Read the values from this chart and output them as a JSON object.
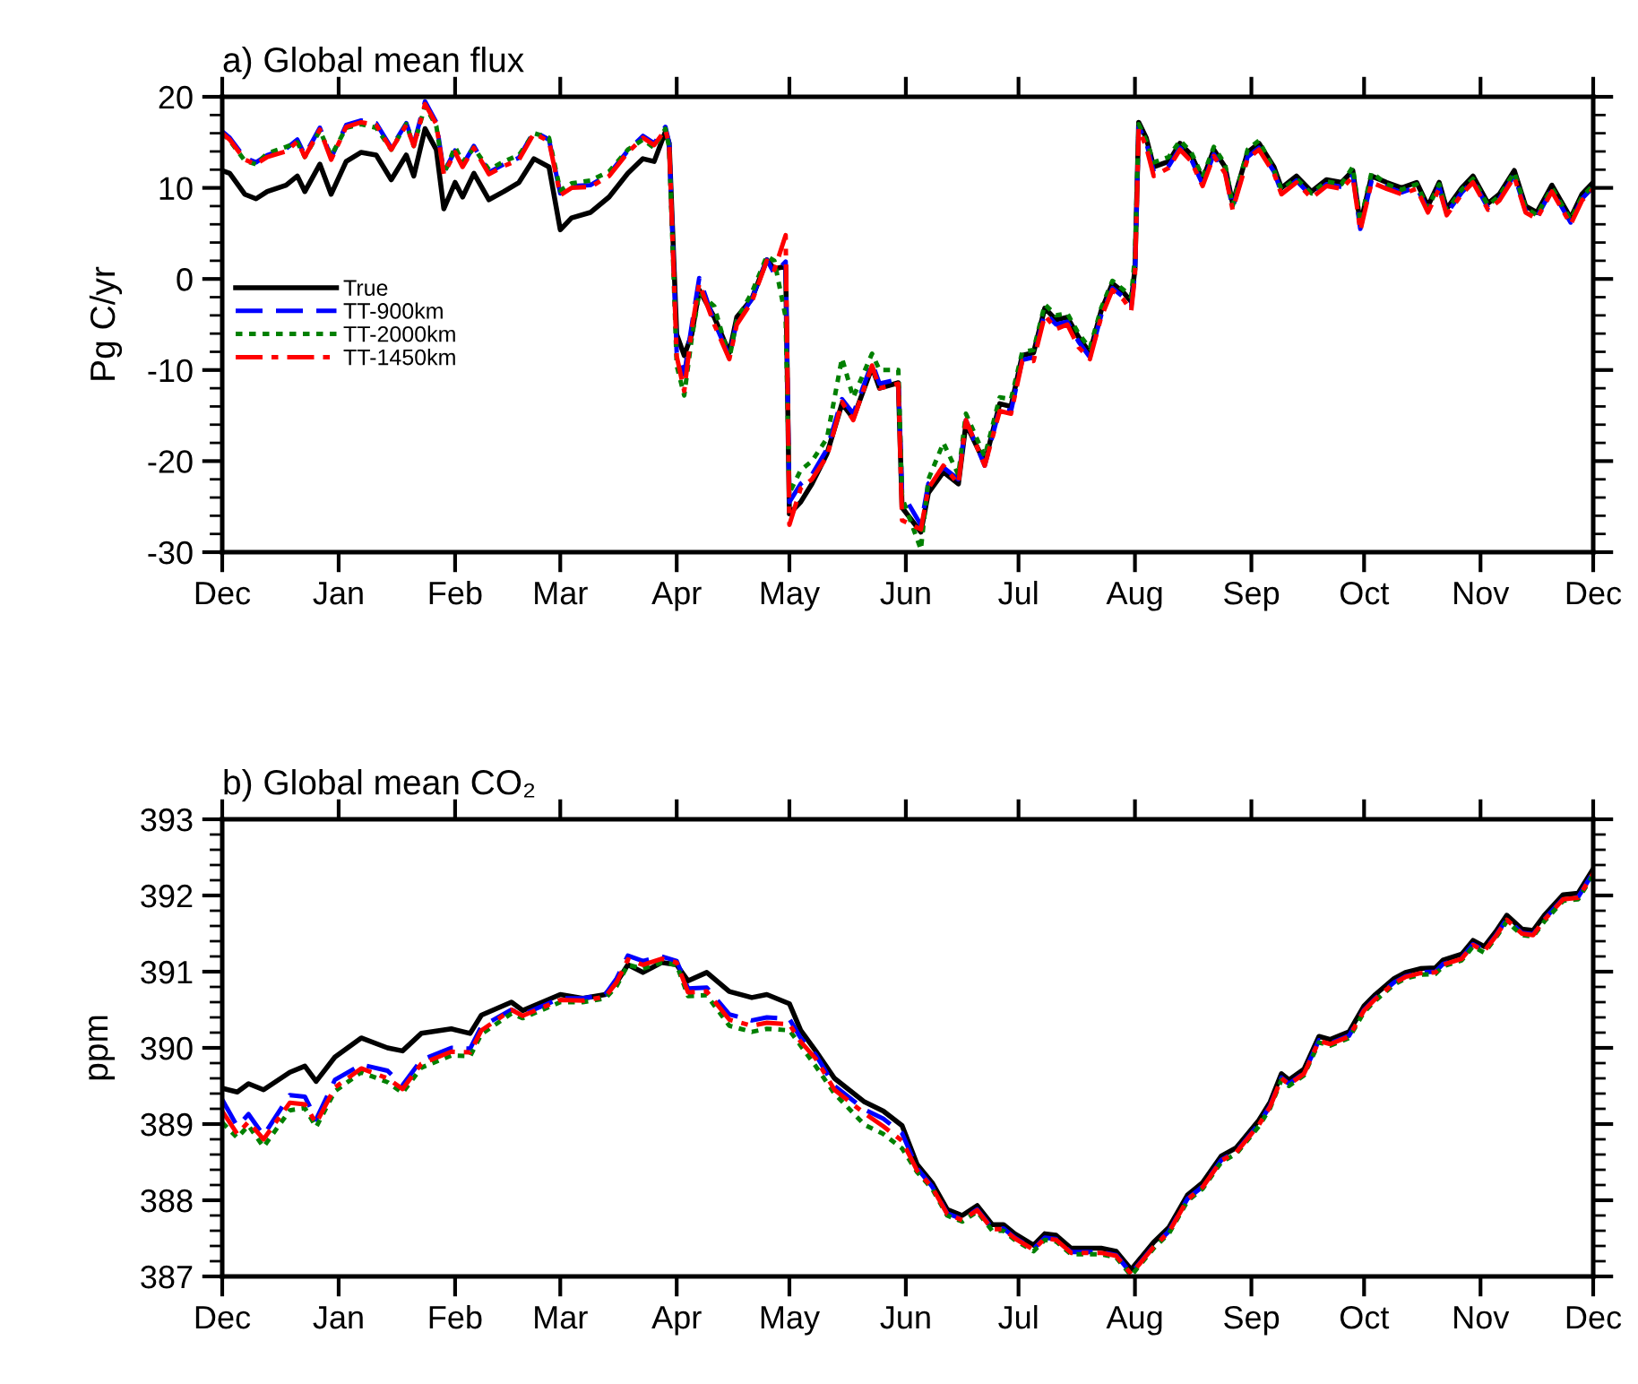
{
  "chart_data": [
    {
      "type": "line",
      "title": "a) Global mean flux",
      "ylabel": "Pg C/yr",
      "xlim": [
        "2000-12-01",
        "2001-12-01"
      ],
      "ylim": [
        -30,
        20
      ],
      "yticks": [
        -30,
        -20,
        -10,
        0,
        10,
        20
      ],
      "xticks": [
        {
          "value": "2000-12-01",
          "label": "Dec"
        },
        {
          "value": "2001-01-01",
          "label": "Jan"
        },
        {
          "value": "2001-02-01",
          "label": "Feb"
        },
        {
          "value": "2001-03-01",
          "label": "Mar"
        },
        {
          "value": "2001-04-01",
          "label": "Apr"
        },
        {
          "value": "2001-05-01",
          "label": "May"
        },
        {
          "value": "2001-06-01",
          "label": "Jun"
        },
        {
          "value": "2001-07-01",
          "label": "Jul"
        },
        {
          "value": "2001-08-01",
          "label": "Aug"
        },
        {
          "value": "2001-09-01",
          "label": "Sep"
        },
        {
          "value": "2001-10-01",
          "label": "Oct"
        },
        {
          "value": "2001-11-01",
          "label": "Nov"
        },
        {
          "value": "2001-12-01",
          "label": "Dec"
        }
      ],
      "legend": "left",
      "x": [
        "2000-12-01",
        "2000-12-03",
        "2000-12-07",
        "2000-12-10",
        "2000-12-13",
        "2000-12-18",
        "2000-12-21",
        "2000-12-23",
        "2000-12-27",
        "2000-12-30",
        "2001-01-03",
        "2001-01-07",
        "2001-01-11",
        "2001-01-15",
        "2001-01-19",
        "2001-01-21",
        "2001-01-24",
        "2001-01-27",
        "2001-01-29",
        "2001-02-01",
        "2001-02-03",
        "2001-02-06",
        "2001-02-10",
        "2001-02-14",
        "2001-02-18",
        "2001-02-22",
        "2001-02-26",
        "2001-03-01",
        "2001-03-04",
        "2001-03-09",
        "2001-03-14",
        "2001-03-19",
        "2001-03-23",
        "2001-03-26",
        "2001-03-29",
        "2001-03-30",
        "2001-04-01",
        "2001-04-03",
        "2001-04-05",
        "2001-04-07",
        "2001-04-11",
        "2001-04-15",
        "2001-04-17",
        "2001-04-21",
        "2001-04-25",
        "2001-04-27",
        "2001-04-30",
        "2001-05-01",
        "2001-05-04",
        "2001-05-07",
        "2001-05-11",
        "2001-05-15",
        "2001-05-18",
        "2001-05-23",
        "2001-05-25",
        "2001-05-30",
        "2001-05-31",
        "2001-06-05",
        "2001-06-07",
        "2001-06-11",
        "2001-06-15",
        "2001-06-17",
        "2001-06-22",
        "2001-06-26",
        "2001-06-29",
        "2001-07-02",
        "2001-07-05",
        "2001-07-08",
        "2001-07-11",
        "2001-07-14",
        "2001-07-17",
        "2001-07-20",
        "2001-07-23",
        "2001-07-26",
        "2001-07-29",
        "2001-07-31",
        "2001-08-01",
        "2001-08-02",
        "2001-08-04",
        "2001-08-06",
        "2001-08-10",
        "2001-08-13",
        "2001-08-16",
        "2001-08-19",
        "2001-08-22",
        "2001-08-25",
        "2001-08-27",
        "2001-08-31",
        "2001-09-03",
        "2001-09-07",
        "2001-09-09",
        "2001-09-13",
        "2001-09-17",
        "2001-09-21",
        "2001-09-25",
        "2001-09-28",
        "2001-09-30",
        "2001-10-03",
        "2001-10-07",
        "2001-10-11",
        "2001-10-15",
        "2001-10-18",
        "2001-10-21",
        "2001-10-23",
        "2001-10-27",
        "2001-10-30",
        "2001-11-03",
        "2001-11-06",
        "2001-11-10",
        "2001-11-13",
        "2001-11-16",
        "2001-11-20",
        "2001-11-25",
        "2001-11-28",
        "2001-12-01"
      ],
      "series": [
        {
          "name": "True",
          "color": "#000000",
          "line_style": "solid",
          "values": [
            11.9,
            11.6,
            9.3,
            8.8,
            9.6,
            10.3,
            11.3,
            9.6,
            12.6,
            9.3,
            12.9,
            13.9,
            13.6,
            10.9,
            13.6,
            11.3,
            16.5,
            14.2,
            7.7,
            10.6,
            9.0,
            11.6,
            8.7,
            9.6,
            10.6,
            13.2,
            12.3,
            5.4,
            6.7,
            7.3,
            9.0,
            11.6,
            13.2,
            12.9,
            16.2,
            14.9,
            -6.1,
            -8.4,
            -6.1,
            -1.2,
            -4.2,
            -8.1,
            -4.2,
            -2.2,
            2.1,
            1.1,
            1.4,
            -25.8,
            -24.5,
            -22.5,
            -19.2,
            -13.7,
            -15.3,
            -9.7,
            -12.0,
            -11.4,
            -25.1,
            -27.8,
            -23.5,
            -21.2,
            -22.5,
            -15.9,
            -20.2,
            -13.7,
            -14.0,
            -8.4,
            -8.1,
            -3.2,
            -4.5,
            -4.2,
            -6.4,
            -8.1,
            -3.5,
            -0.5,
            -1.5,
            -2.5,
            1.1,
            17.2,
            15.5,
            12.3,
            12.9,
            14.9,
            13.6,
            10.9,
            14.2,
            12.3,
            8.3,
            13.9,
            14.9,
            12.3,
            10.0,
            11.3,
            9.6,
            10.9,
            10.6,
            11.9,
            6.0,
            11.3,
            10.6,
            10.0,
            10.6,
            8.0,
            10.6,
            7.7,
            10.0,
            11.3,
            8.3,
            9.3,
            11.9,
            8.0,
            7.3,
            10.3,
            6.7,
            9.3,
            10.6
          ]
        },
        {
          "name": "TT-900km",
          "color": "#0000ff",
          "line_style": "dashed",
          "values": [
            16.2,
            15.5,
            13.3,
            12.8,
            13.6,
            14.3,
            15.3,
            13.6,
            16.6,
            13.3,
            16.9,
            17.4,
            17.1,
            14.4,
            17.1,
            14.8,
            19.5,
            17.2,
            11.7,
            14.1,
            12.5,
            14.6,
            11.7,
            12.6,
            13.3,
            16.2,
            15.3,
            9.4,
            10.2,
            10.3,
            11.5,
            14.1,
            15.7,
            14.9,
            16.7,
            14.9,
            -8.1,
            -10.5,
            -5.1,
            0.1,
            -4.7,
            -8.5,
            -4.7,
            -2.2,
            2.1,
            0.6,
            1.9,
            -24.5,
            -22.5,
            -21.5,
            -18.7,
            -13.2,
            -14.8,
            -9.2,
            -11.5,
            -11.0,
            -23.5,
            -27.0,
            -22.5,
            -20.7,
            -22.0,
            -15.5,
            -20.5,
            -14.2,
            -14.5,
            -8.9,
            -8.6,
            -3.7,
            -5.0,
            -4.7,
            -6.9,
            -8.6,
            -4.0,
            -1.0,
            -2.0,
            -3.0,
            0.6,
            16.7,
            15.0,
            11.8,
            12.4,
            14.4,
            13.1,
            10.4,
            13.7,
            11.8,
            7.8,
            13.4,
            14.4,
            11.8,
            9.5,
            10.8,
            9.1,
            10.4,
            10.1,
            11.4,
            5.5,
            10.8,
            10.1,
            9.5,
            10.1,
            7.5,
            10.1,
            7.2,
            9.5,
            10.8,
            7.8,
            8.8,
            11.4,
            7.5,
            6.8,
            9.8,
            6.2,
            8.8,
            10.1
          ]
        },
        {
          "name": "TT-2000km",
          "color": "#008000",
          "line_style": "dotted",
          "values": [
            16.0,
            15.2,
            13.0,
            12.6,
            13.8,
            14.5,
            15.0,
            13.4,
            16.3,
            13.5,
            16.6,
            17.0,
            16.6,
            14.2,
            17.0,
            14.6,
            19.0,
            16.8,
            11.5,
            14.5,
            12.8,
            14.4,
            12.0,
            12.9,
            13.6,
            16.0,
            15.5,
            9.7,
            10.5,
            10.8,
            11.8,
            14.2,
            15.3,
            14.4,
            16.5,
            14.4,
            -9.5,
            -12.8,
            -6.5,
            -1.5,
            -3.0,
            -8.8,
            -4.5,
            -1.5,
            2.5,
            2.0,
            -4.2,
            -23.5,
            -21.0,
            -20.0,
            -17.5,
            -8.7,
            -13.0,
            -8.2,
            -10.0,
            -10.0,
            -24.0,
            -29.7,
            -22.0,
            -18.0,
            -21.5,
            -14.8,
            -19.5,
            -13.0,
            -13.2,
            -8.0,
            -7.8,
            -2.8,
            -4.0,
            -3.8,
            -6.0,
            -7.6,
            -3.2,
            -0.2,
            -1.2,
            -2.0,
            2.5,
            17.0,
            15.2,
            12.8,
            13.4,
            15.2,
            13.9,
            11.2,
            14.5,
            12.6,
            8.0,
            14.2,
            15.2,
            12.0,
            9.8,
            11.0,
            9.4,
            10.7,
            10.4,
            12.3,
            6.2,
            11.7,
            10.4,
            9.8,
            10.4,
            7.8,
            10.4,
            7.5,
            9.8,
            11.0,
            8.1,
            9.1,
            11.7,
            7.8,
            7.0,
            10.0,
            6.5,
            9.0,
            10.3
          ]
        },
        {
          "name": "TT-1450km",
          "color": "#ff0000",
          "line_style": "dashdot",
          "values": [
            16.0,
            15.3,
            13.1,
            12.6,
            13.4,
            14.0,
            15.1,
            13.4,
            16.4,
            13.1,
            16.7,
            17.2,
            16.9,
            14.2,
            16.9,
            14.6,
            19.2,
            17.0,
            11.5,
            13.9,
            12.3,
            14.4,
            11.5,
            12.4,
            13.1,
            16.0,
            15.1,
            9.2,
            10.0,
            10.1,
            11.3,
            13.9,
            15.5,
            14.7,
            16.4,
            14.7,
            -8.5,
            -12.3,
            -5.5,
            -0.5,
            -5.0,
            -8.8,
            -5.0,
            -2.5,
            2.0,
            1.0,
            4.8,
            -27.0,
            -23.0,
            -22.0,
            -19.5,
            -13.5,
            -15.5,
            -9.5,
            -12.0,
            -11.5,
            -26.5,
            -27.5,
            -23.0,
            -20.5,
            -22.5,
            -15.5,
            -20.5,
            -14.5,
            -14.8,
            -9.0,
            -9.0,
            -4.0,
            -5.5,
            -5.0,
            -7.5,
            -8.8,
            -4.2,
            -1.2,
            -2.3,
            -3.5,
            0.3,
            16.5,
            14.5,
            11.3,
            12.2,
            14.2,
            12.9,
            10.2,
            13.5,
            11.6,
            7.6,
            13.2,
            14.2,
            11.6,
            9.3,
            10.6,
            8.9,
            10.2,
            9.9,
            11.2,
            5.3,
            10.6,
            9.9,
            9.3,
            9.9,
            7.3,
            9.9,
            7.0,
            9.3,
            10.6,
            7.6,
            8.6,
            11.2,
            7.3,
            6.6,
            9.6,
            6.0,
            8.6,
            9.9
          ]
        }
      ]
    },
    {
      "type": "line",
      "title": "b) Global mean CO₂",
      "ylabel": "ppm",
      "xlim": [
        "2000-12-01",
        "2001-12-01"
      ],
      "ylim": [
        387,
        393
      ],
      "yticks": [
        387,
        388,
        389,
        390,
        391,
        392,
        393
      ],
      "xticks": [
        {
          "value": "2000-12-01",
          "label": "Dec"
        },
        {
          "value": "2001-01-01",
          "label": "Jan"
        },
        {
          "value": "2001-02-01",
          "label": "Feb"
        },
        {
          "value": "2001-03-01",
          "label": "Mar"
        },
        {
          "value": "2001-04-01",
          "label": "Apr"
        },
        {
          "value": "2001-05-01",
          "label": "May"
        },
        {
          "value": "2001-06-01",
          "label": "Jun"
        },
        {
          "value": "2001-07-01",
          "label": "Jul"
        },
        {
          "value": "2001-08-01",
          "label": "Aug"
        },
        {
          "value": "2001-09-01",
          "label": "Sep"
        },
        {
          "value": "2001-10-01",
          "label": "Oct"
        },
        {
          "value": "2001-11-01",
          "label": "Nov"
        },
        {
          "value": "2001-12-01",
          "label": "Dec"
        }
      ],
      "x": [
        "2000-12-01",
        "2000-12-05",
        "2000-12-08",
        "2000-12-12",
        "2000-12-19",
        "2000-12-23",
        "2000-12-26",
        "2000-12-31",
        "2001-01-07",
        "2001-01-14",
        "2001-01-18",
        "2001-01-23",
        "2001-01-31",
        "2001-02-05",
        "2001-02-08",
        "2001-02-16",
        "2001-02-19",
        "2001-03-01",
        "2001-03-07",
        "2001-03-13",
        "2001-03-16",
        "2001-03-19",
        "2001-03-23",
        "2001-03-28",
        "2001-04-01",
        "2001-04-04",
        "2001-04-09",
        "2001-04-15",
        "2001-04-21",
        "2001-04-25",
        "2001-05-01",
        "2001-05-04",
        "2001-05-08",
        "2001-05-13",
        "2001-05-21",
        "2001-05-26",
        "2001-05-31",
        "2001-06-04",
        "2001-06-08",
        "2001-06-12",
        "2001-06-16",
        "2001-06-20",
        "2001-06-24",
        "2001-06-27",
        "2001-06-30",
        "2001-07-05",
        "2001-07-08",
        "2001-07-11",
        "2001-07-15",
        "2001-07-23",
        "2001-07-27",
        "2001-07-31",
        "2001-08-06",
        "2001-08-10",
        "2001-08-15",
        "2001-08-19",
        "2001-08-24",
        "2001-08-28",
        "2001-09-03",
        "2001-09-06",
        "2001-09-09",
        "2001-09-11",
        "2001-09-15",
        "2001-09-19",
        "2001-09-22",
        "2001-09-27",
        "2001-10-01",
        "2001-10-04",
        "2001-10-09",
        "2001-10-12",
        "2001-10-16",
        "2001-10-20",
        "2001-10-22",
        "2001-10-27",
        "2001-10-30",
        "2001-11-02",
        "2001-11-05",
        "2001-11-08",
        "2001-11-12",
        "2001-11-15",
        "2001-11-18",
        "2001-11-23",
        "2001-11-27",
        "2001-12-01"
      ],
      "series": [
        {
          "color": "#000000",
          "line_style": "solid",
          "values": [
            389.47,
            389.42,
            389.53,
            389.45,
            389.68,
            389.76,
            389.56,
            389.88,
            390.13,
            390.0,
            389.96,
            390.19,
            390.25,
            390.19,
            390.43,
            390.6,
            390.49,
            390.7,
            390.65,
            390.7,
            390.86,
            391.09,
            390.99,
            391.12,
            391.09,
            390.88,
            390.99,
            390.74,
            390.66,
            390.7,
            390.58,
            390.23,
            389.96,
            389.6,
            389.29,
            389.17,
            388.98,
            388.47,
            388.23,
            387.88,
            387.8,
            387.93,
            387.68,
            387.68,
            387.56,
            387.41,
            387.56,
            387.54,
            387.37,
            387.37,
            387.33,
            387.09,
            387.45,
            387.64,
            388.07,
            388.23,
            388.58,
            388.69,
            389.05,
            389.29,
            389.66,
            389.58,
            389.72,
            390.15,
            390.11,
            390.21,
            390.55,
            390.7,
            390.91,
            390.99,
            391.04,
            391.05,
            391.15,
            391.23,
            391.41,
            391.33,
            391.52,
            391.74,
            391.56,
            391.54,
            391.74,
            392.01,
            392.03,
            392.35
          ]
        },
        {
          "color": "#0000ff",
          "line_style": "dashed",
          "values": [
            389.32,
            388.97,
            389.13,
            388.85,
            389.38,
            389.36,
            389.06,
            389.58,
            389.78,
            389.7,
            389.51,
            389.84,
            390.0,
            389.99,
            390.28,
            390.5,
            390.44,
            390.65,
            390.65,
            390.7,
            390.91,
            391.21,
            391.14,
            391.2,
            391.14,
            390.78,
            390.79,
            390.44,
            390.36,
            390.4,
            390.38,
            390.13,
            389.91,
            389.5,
            389.19,
            389.07,
            388.88,
            388.42,
            388.18,
            387.83,
            387.75,
            387.88,
            387.63,
            387.63,
            387.51,
            387.36,
            387.51,
            387.49,
            387.32,
            387.32,
            387.28,
            387.04,
            387.4,
            387.59,
            388.02,
            388.18,
            388.53,
            388.64,
            389.0,
            389.24,
            389.61,
            389.53,
            389.67,
            390.1,
            390.06,
            390.16,
            390.5,
            390.65,
            390.86,
            390.94,
            390.99,
            391.0,
            391.1,
            391.18,
            391.36,
            391.28,
            391.47,
            391.69,
            391.51,
            391.49,
            391.69,
            391.96,
            391.98,
            392.3
          ]
        },
        {
          "color": "#008000",
          "line_style": "dotted",
          "values": [
            389.02,
            388.82,
            388.98,
            388.7,
            389.18,
            389.21,
            388.96,
            389.43,
            389.68,
            389.55,
            389.41,
            389.74,
            389.9,
            389.89,
            390.18,
            390.45,
            390.39,
            390.6,
            390.6,
            390.65,
            390.81,
            391.09,
            391.04,
            391.12,
            391.09,
            390.68,
            390.69,
            390.29,
            390.21,
            390.25,
            390.23,
            390.03,
            389.76,
            389.4,
            388.99,
            388.87,
            388.68,
            388.37,
            388.15,
            387.8,
            387.72,
            387.85,
            387.6,
            387.6,
            387.48,
            387.33,
            387.48,
            387.46,
            387.29,
            387.29,
            387.25,
            387.01,
            387.37,
            387.56,
            387.99,
            388.15,
            388.5,
            388.61,
            388.97,
            389.21,
            389.58,
            389.5,
            389.64,
            390.07,
            390.03,
            390.13,
            390.47,
            390.62,
            390.83,
            390.91,
            390.96,
            390.97,
            391.07,
            391.15,
            391.33,
            391.25,
            391.44,
            391.66,
            391.48,
            391.46,
            391.66,
            391.93,
            391.95,
            392.27
          ]
        },
        {
          "color": "#ff0000",
          "line_style": "dashdot",
          "values": [
            389.17,
            388.87,
            389.03,
            388.8,
            389.28,
            389.26,
            389.01,
            389.48,
            389.73,
            389.6,
            389.46,
            389.79,
            389.95,
            389.94,
            390.23,
            390.5,
            390.42,
            390.63,
            390.62,
            390.67,
            390.86,
            391.16,
            391.09,
            391.17,
            391.12,
            390.73,
            390.74,
            390.37,
            390.29,
            390.33,
            390.31,
            390.08,
            389.86,
            389.45,
            389.14,
            388.97,
            388.78,
            388.39,
            388.17,
            387.82,
            387.74,
            387.87,
            387.62,
            387.62,
            387.5,
            387.35,
            387.5,
            387.48,
            387.31,
            387.31,
            387.27,
            387.03,
            387.39,
            387.58,
            388.01,
            388.17,
            388.52,
            388.63,
            388.99,
            389.23,
            389.6,
            389.52,
            389.66,
            390.09,
            390.05,
            390.15,
            390.49,
            390.64,
            390.85,
            390.93,
            390.98,
            390.99,
            391.09,
            391.17,
            391.35,
            391.27,
            391.46,
            391.68,
            391.5,
            391.48,
            391.68,
            391.95,
            391.97,
            392.29
          ]
        }
      ]
    }
  ]
}
